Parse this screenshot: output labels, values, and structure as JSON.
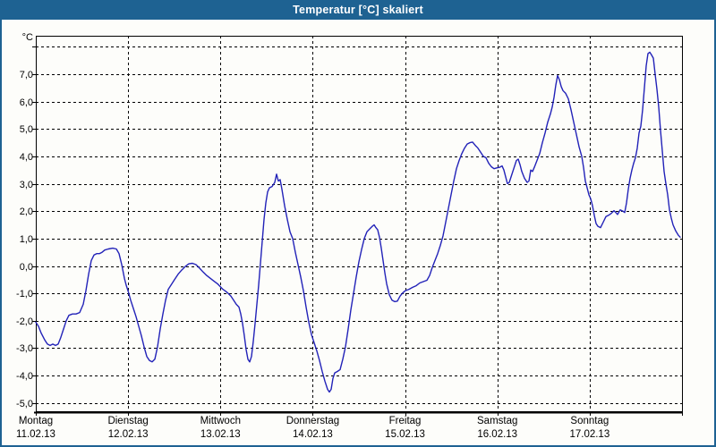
{
  "window": {
    "title": "Temperatur [°C] skaliert"
  },
  "colors": {
    "header_bg": "#1e6292",
    "header_text": "#ffffff",
    "plot_bg": "#fdfdfa",
    "grid": "#000000",
    "line": "#2222b8"
  },
  "chart_data": {
    "type": "line",
    "title": "Temperatur [°C] skaliert",
    "unit_label": "°C",
    "ylabel": "Temperatur [°C]",
    "ylim": [
      -5.3,
      8.4
    ],
    "grid": "dashed",
    "legend": "none",
    "y_ticks": [
      {
        "value": 8,
        "label": ""
      },
      {
        "value": 7,
        "label": "7,0"
      },
      {
        "value": 6,
        "label": "6,0"
      },
      {
        "value": 5,
        "label": "5,0"
      },
      {
        "value": 4,
        "label": "4,0"
      },
      {
        "value": 3,
        "label": "3,0"
      },
      {
        "value": 2,
        "label": "2,0"
      },
      {
        "value": 1,
        "label": "1,0"
      },
      {
        "value": 0,
        "label": "0,0"
      },
      {
        "value": -1,
        "label": "-1,0"
      },
      {
        "value": -2,
        "label": "-2,0"
      },
      {
        "value": -3,
        "label": "-3,0"
      },
      {
        "value": -4,
        "label": "-4,0"
      },
      {
        "value": -5,
        "label": "-5,0"
      }
    ],
    "x_days": [
      {
        "name": "Montag",
        "date": "11.02.13"
      },
      {
        "name": "Dienstag",
        "date": "12.02.13"
      },
      {
        "name": "Mittwoch",
        "date": "13.02.13"
      },
      {
        "name": "Donnerstag",
        "date": "14.02.13"
      },
      {
        "name": "Freitag",
        "date": "15.02.13"
      },
      {
        "name": "Samstag",
        "date": "16.02.13"
      },
      {
        "name": "Sonntag",
        "date": "17.02.13"
      }
    ],
    "series": [
      {
        "name": "Temperatur",
        "unit": "°C",
        "color": "#2222b8",
        "points_format": "[x_pixel, temp_celsius]",
        "points": [
          [
            40,
            -2.05
          ],
          [
            43,
            -2.2
          ],
          [
            46,
            -2.45
          ],
          [
            50,
            -2.7
          ],
          [
            53,
            -2.85
          ],
          [
            56,
            -2.9
          ],
          [
            59,
            -2.85
          ],
          [
            62,
            -2.9
          ],
          [
            65,
            -2.85
          ],
          [
            68,
            -2.6
          ],
          [
            71,
            -2.3
          ],
          [
            74,
            -2.0
          ],
          [
            77,
            -1.8
          ],
          [
            81,
            -1.75
          ],
          [
            85,
            -1.75
          ],
          [
            89,
            -1.7
          ],
          [
            93,
            -1.4
          ],
          [
            96,
            -0.9
          ],
          [
            99,
            -0.3
          ],
          [
            102,
            0.2
          ],
          [
            105,
            0.4
          ],
          [
            108,
            0.45
          ],
          [
            111,
            0.45
          ],
          [
            114,
            0.5
          ],
          [
            117,
            0.58
          ],
          [
            121,
            0.62
          ],
          [
            126,
            0.65
          ],
          [
            130,
            0.62
          ],
          [
            133,
            0.45
          ],
          [
            136,
            0.05
          ],
          [
            139,
            -0.45
          ],
          [
            141,
            -0.7
          ],
          [
            143,
            -0.9
          ],
          [
            146,
            -1.25
          ],
          [
            149,
            -1.55
          ],
          [
            152,
            -1.85
          ],
          [
            155,
            -2.2
          ],
          [
            158,
            -2.55
          ],
          [
            161,
            -2.95
          ],
          [
            164,
            -3.3
          ],
          [
            167,
            -3.45
          ],
          [
            170,
            -3.5
          ],
          [
            173,
            -3.4
          ],
          [
            176,
            -2.95
          ],
          [
            179,
            -2.3
          ],
          [
            182,
            -1.75
          ],
          [
            185,
            -1.25
          ],
          [
            188,
            -0.85
          ],
          [
            191,
            -0.7
          ],
          [
            195,
            -0.5
          ],
          [
            199,
            -0.3
          ],
          [
            203,
            -0.15
          ],
          [
            207,
            -0.02
          ],
          [
            211,
            0.08
          ],
          [
            215,
            0.1
          ],
          [
            219,
            0.05
          ],
          [
            223,
            -0.08
          ],
          [
            227,
            -0.22
          ],
          [
            231,
            -0.35
          ],
          [
            235,
            -0.45
          ],
          [
            239,
            -0.55
          ],
          [
            243,
            -0.65
          ],
          [
            246,
            -0.75
          ],
          [
            249,
            -0.85
          ],
          [
            252,
            -0.92
          ],
          [
            255,
            -1.0
          ],
          [
            258,
            -1.1
          ],
          [
            261,
            -1.25
          ],
          [
            264,
            -1.4
          ],
          [
            267,
            -1.5
          ],
          [
            269,
            -1.75
          ],
          [
            271,
            -2.1
          ],
          [
            273,
            -2.55
          ],
          [
            275,
            -3.05
          ],
          [
            277,
            -3.4
          ],
          [
            279,
            -3.5
          ],
          [
            281,
            -3.3
          ],
          [
            283,
            -2.75
          ],
          [
            285,
            -2.1
          ],
          [
            287,
            -1.4
          ],
          [
            289,
            -0.7
          ],
          [
            291,
            0.1
          ],
          [
            293,
            0.9
          ],
          [
            295,
            1.7
          ],
          [
            297,
            2.3
          ],
          [
            299,
            2.7
          ],
          [
            301,
            2.85
          ],
          [
            304,
            2.9
          ],
          [
            307,
            3.05
          ],
          [
            309,
            3.35
          ],
          [
            311,
            3.1
          ],
          [
            313,
            3.15
          ],
          [
            315,
            2.8
          ],
          [
            318,
            2.2
          ],
          [
            321,
            1.7
          ],
          [
            324,
            1.25
          ],
          [
            327,
            1.0
          ],
          [
            330,
            0.5
          ],
          [
            333,
            0.05
          ],
          [
            336,
            -0.4
          ],
          [
            339,
            -0.9
          ],
          [
            342,
            -1.5
          ],
          [
            345,
            -2.05
          ],
          [
            348,
            -2.5
          ],
          [
            351,
            -2.8
          ],
          [
            354,
            -3.1
          ],
          [
            357,
            -3.45
          ],
          [
            360,
            -3.85
          ],
          [
            363,
            -4.2
          ],
          [
            366,
            -4.5
          ],
          [
            368,
            -4.6
          ],
          [
            370,
            -4.5
          ],
          [
            372,
            -4.1
          ],
          [
            374,
            -3.9
          ],
          [
            377,
            -3.85
          ],
          [
            380,
            -3.78
          ],
          [
            383,
            -3.4
          ],
          [
            386,
            -2.95
          ],
          [
            389,
            -2.3
          ],
          [
            392,
            -1.6
          ],
          [
            395,
            -1.0
          ],
          [
            398,
            -0.4
          ],
          [
            401,
            0.15
          ],
          [
            404,
            0.6
          ],
          [
            407,
            1.0
          ],
          [
            410,
            1.25
          ],
          [
            413,
            1.35
          ],
          [
            416,
            1.45
          ],
          [
            418,
            1.5
          ],
          [
            420,
            1.4
          ],
          [
            422,
            1.32
          ],
          [
            424,
            1.05
          ],
          [
            426,
            0.65
          ],
          [
            428,
            0.2
          ],
          [
            430,
            -0.25
          ],
          [
            432,
            -0.65
          ],
          [
            435,
            -1.05
          ],
          [
            438,
            -1.25
          ],
          [
            441,
            -1.3
          ],
          [
            444,
            -1.28
          ],
          [
            447,
            -1.1
          ],
          [
            450,
            -0.98
          ],
          [
            453,
            -0.9
          ],
          [
            457,
            -0.85
          ],
          [
            461,
            -0.78
          ],
          [
            465,
            -0.72
          ],
          [
            469,
            -0.62
          ],
          [
            473,
            -0.57
          ],
          [
            477,
            -0.52
          ],
          [
            480,
            -0.35
          ],
          [
            483,
            -0.05
          ],
          [
            486,
            0.2
          ],
          [
            489,
            0.45
          ],
          [
            492,
            0.75
          ],
          [
            495,
            1.1
          ],
          [
            498,
            1.6
          ],
          [
            501,
            2.1
          ],
          [
            504,
            2.6
          ],
          [
            507,
            3.1
          ],
          [
            510,
            3.55
          ],
          [
            513,
            3.85
          ],
          [
            516,
            4.1
          ],
          [
            519,
            4.3
          ],
          [
            522,
            4.45
          ],
          [
            525,
            4.5
          ],
          [
            528,
            4.52
          ],
          [
            531,
            4.4
          ],
          [
            534,
            4.3
          ],
          [
            537,
            4.15
          ],
          [
            540,
            4.0
          ],
          [
            543,
            3.95
          ],
          [
            546,
            3.75
          ],
          [
            549,
            3.62
          ],
          [
            552,
            3.55
          ],
          [
            555,
            3.58
          ],
          [
            558,
            3.6
          ],
          [
            561,
            3.65
          ],
          [
            563,
            3.5
          ],
          [
            565,
            3.25
          ],
          [
            567,
            3.0
          ],
          [
            569,
            3.05
          ],
          [
            571,
            3.25
          ],
          [
            574,
            3.55
          ],
          [
            577,
            3.85
          ],
          [
            579,
            3.9
          ],
          [
            581,
            3.7
          ],
          [
            583,
            3.45
          ],
          [
            586,
            3.2
          ],
          [
            589,
            3.05
          ],
          [
            591,
            3.1
          ],
          [
            593,
            3.5
          ],
          [
            595,
            3.45
          ],
          [
            597,
            3.6
          ],
          [
            600,
            3.85
          ],
          [
            603,
            4.1
          ],
          [
            606,
            4.5
          ],
          [
            609,
            4.85
          ],
          [
            612,
            5.25
          ],
          [
            615,
            5.55
          ],
          [
            617,
            5.8
          ],
          [
            619,
            6.15
          ],
          [
            621,
            6.6
          ],
          [
            623,
            6.95
          ],
          [
            625,
            6.8
          ],
          [
            627,
            6.55
          ],
          [
            629,
            6.4
          ],
          [
            632,
            6.3
          ],
          [
            635,
            6.1
          ],
          [
            638,
            5.7
          ],
          [
            641,
            5.25
          ],
          [
            644,
            4.8
          ],
          [
            647,
            4.35
          ],
          [
            650,
            4.0
          ],
          [
            652,
            3.6
          ],
          [
            654,
            3.1
          ],
          [
            656,
            2.85
          ],
          [
            658,
            2.6
          ],
          [
            660,
            2.45
          ],
          [
            662,
            2.2
          ],
          [
            664,
            1.85
          ],
          [
            666,
            1.55
          ],
          [
            668,
            1.45
          ],
          [
            671,
            1.4
          ],
          [
            674,
            1.6
          ],
          [
            677,
            1.8
          ],
          [
            680,
            1.85
          ],
          [
            683,
            1.92
          ],
          [
            686,
            2.02
          ],
          [
            688,
            1.95
          ],
          [
            690,
            1.88
          ],
          [
            693,
            2.05
          ],
          [
            696,
            2.0
          ],
          [
            698,
            1.95
          ],
          [
            700,
            2.3
          ],
          [
            702,
            2.8
          ],
          [
            704,
            3.2
          ],
          [
            706,
            3.5
          ],
          [
            708,
            3.75
          ],
          [
            710,
            3.95
          ],
          [
            712,
            4.3
          ],
          [
            714,
            4.85
          ],
          [
            716,
            5.1
          ],
          [
            718,
            5.7
          ],
          [
            720,
            6.5
          ],
          [
            722,
            7.3
          ],
          [
            724,
            7.75
          ],
          [
            726,
            7.8
          ],
          [
            728,
            7.7
          ],
          [
            730,
            7.58
          ],
          [
            732,
            7.0
          ],
          [
            734,
            6.45
          ],
          [
            736,
            5.8
          ],
          [
            738,
            4.95
          ],
          [
            740,
            4.2
          ],
          [
            742,
            3.45
          ],
          [
            744,
            3.0
          ],
          [
            746,
            2.6
          ],
          [
            748,
            2.05
          ],
          [
            750,
            1.75
          ],
          [
            752,
            1.5
          ],
          [
            755,
            1.28
          ],
          [
            758,
            1.12
          ],
          [
            760,
            1.05
          ]
        ]
      }
    ]
  }
}
